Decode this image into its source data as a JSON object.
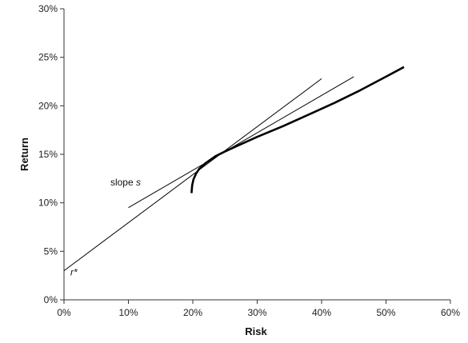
{
  "chart_data": {
    "type": "line",
    "xlabel": "Risk",
    "ylabel": "Return",
    "xlim": [
      0,
      60
    ],
    "ylim": [
      0,
      30
    ],
    "x_ticks": [
      "0%",
      "10%",
      "20%",
      "30%",
      "40%",
      "50%",
      "60%"
    ],
    "y_ticks": [
      "0%",
      "5%",
      "10%",
      "15%",
      "20%",
      "25%",
      "30%"
    ],
    "grid": false,
    "series": [
      {
        "style": "bold",
        "x": [
          19.8,
          19.9,
          20.1,
          20.5,
          21.0,
          22.0,
          23.5,
          25.0,
          27.0,
          30.0,
          34.0,
          38.0,
          42.0,
          46.0,
          50.0,
          52.8
        ],
        "y": [
          11.0,
          11.8,
          12.4,
          13.0,
          13.5,
          14.1,
          14.8,
          15.3,
          15.9,
          16.8,
          17.9,
          19.1,
          20.3,
          21.6,
          23.0,
          24.0
        ]
      },
      {
        "style": "thin",
        "x": [
          0,
          40
        ],
        "y": [
          3.0,
          22.8
        ]
      },
      {
        "style": "thin",
        "x": [
          10,
          45
        ],
        "y": [
          9.5,
          23.0
        ]
      }
    ],
    "annotations": {
      "slope_prefix": "slope",
      "slope_var": "s",
      "slope_x": 7.2,
      "slope_y": 11.8,
      "rstar_label": "r*",
      "rstar_x": 1.0,
      "rstar_y": 2.5
    }
  }
}
